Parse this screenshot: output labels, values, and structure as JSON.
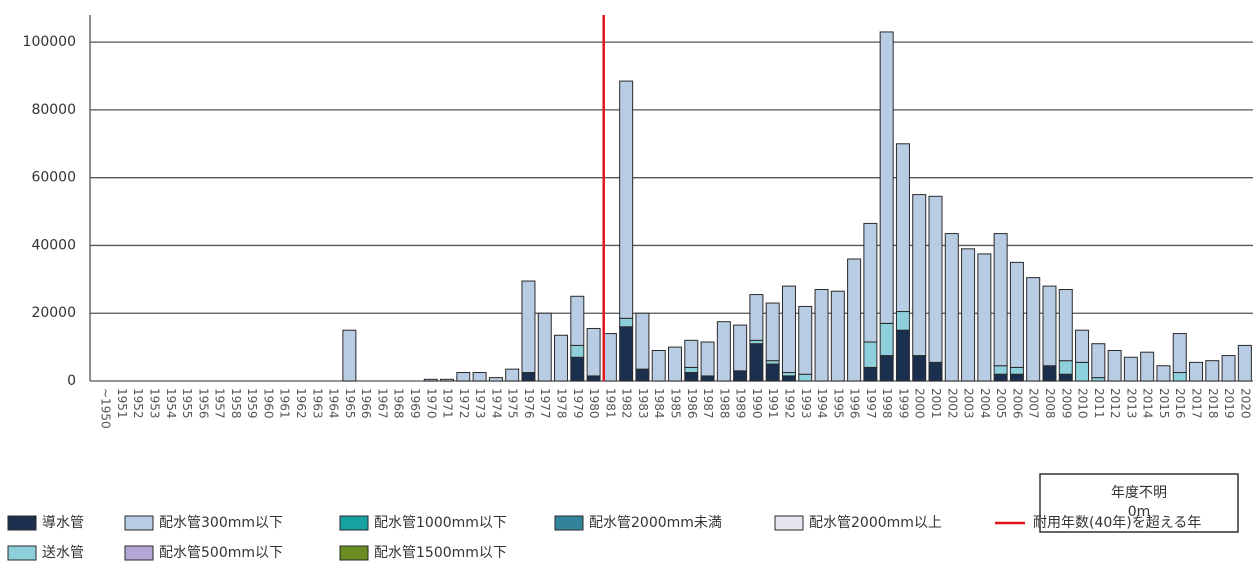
{
  "chart_data": {
    "type": "stacked_bar",
    "categories": [
      "~1950",
      "1951",
      "1952",
      "1953",
      "1954",
      "1955",
      "1956",
      "1957",
      "1958",
      "1959",
      "1960",
      "1961",
      "1962",
      "1963",
      "1964",
      "1965",
      "1966",
      "1967",
      "1968",
      "1969",
      "1970",
      "1971",
      "1972",
      "1973",
      "1974",
      "1975",
      "1976",
      "1977",
      "1978",
      "1979",
      "1980",
      "1981",
      "1982",
      "1983",
      "1984",
      "1985",
      "1986",
      "1987",
      "1988",
      "1989",
      "1990",
      "1991",
      "1992",
      "1993",
      "1994",
      "1995",
      "1996",
      "1997",
      "1998",
      "1999",
      "2000",
      "2001",
      "2002",
      "2003",
      "2004",
      "2005",
      "2006",
      "2007",
      "2008",
      "2009",
      "2010",
      "2011",
      "2012",
      "2013",
      "2014",
      "2015",
      "2016",
      "2017",
      "2018",
      "2019",
      "2020"
    ],
    "series": [
      {
        "name": "導水管",
        "color": "#1b2f4e",
        "values": [
          0,
          0,
          0,
          0,
          0,
          0,
          0,
          0,
          0,
          0,
          0,
          0,
          0,
          0,
          0,
          0,
          0,
          0,
          0,
          0,
          0,
          0,
          0,
          0,
          0,
          0,
          2500,
          0,
          0,
          7000,
          1500,
          0,
          16000,
          3500,
          0,
          0,
          2500,
          1500,
          0,
          3000,
          11000,
          5000,
          1500,
          0,
          0,
          0,
          0,
          4000,
          7500,
          15000,
          7500,
          5500,
          0,
          0,
          0,
          2000,
          2000,
          0,
          4500,
          2000,
          0,
          0,
          0,
          0,
          0,
          0,
          0,
          0,
          0,
          0,
          0
        ]
      },
      {
        "name": "送水管",
        "color": "#8ecfdc",
        "values": [
          0,
          0,
          0,
          0,
          0,
          0,
          0,
          0,
          0,
          0,
          0,
          0,
          0,
          0,
          0,
          0,
          0,
          0,
          0,
          0,
          0,
          0,
          0,
          0,
          0,
          0,
          0,
          0,
          0,
          3500,
          0,
          0,
          2500,
          0,
          0,
          0,
          1500,
          0,
          0,
          0,
          1000,
          1000,
          1000,
          2000,
          0,
          0,
          0,
          7500,
          9500,
          5500,
          0,
          0,
          0,
          0,
          0,
          2500,
          2000,
          0,
          0,
          4000,
          5500,
          1000,
          0,
          0,
          0,
          0,
          2500,
          0,
          0,
          0,
          0
        ]
      },
      {
        "name": "配水管300mm以下",
        "color": "#b8cce4",
        "values": [
          0,
          0,
          0,
          0,
          0,
          0,
          0,
          0,
          0,
          0,
          0,
          0,
          0,
          0,
          0,
          15000,
          0,
          0,
          0,
          0,
          500,
          500,
          2500,
          2500,
          1000,
          3500,
          27000,
          20000,
          13500,
          14500,
          14000,
          14000,
          70000,
          16500,
          9000,
          10000,
          8000,
          10000,
          17500,
          13500,
          13500,
          17000,
          25500,
          20000,
          27000,
          26500,
          36000,
          35000,
          86000,
          49500,
          47500,
          49000,
          43500,
          39000,
          37500,
          39000,
          31000,
          30500,
          23500,
          21000,
          9500,
          10000,
          9000,
          7000,
          8500,
          4500,
          11500,
          5500,
          6000,
          7500,
          10500
        ]
      },
      {
        "name": "配水管500mm以下",
        "color": "#b4a7d6",
        "values": [
          0,
          0,
          0,
          0,
          0,
          0,
          0,
          0,
          0,
          0,
          0,
          0,
          0,
          0,
          0,
          0,
          0,
          0,
          0,
          0,
          0,
          0,
          0,
          0,
          0,
          0,
          0,
          0,
          0,
          0,
          0,
          0,
          0,
          0,
          0,
          0,
          0,
          0,
          0,
          0,
          0,
          0,
          0,
          0,
          0,
          0,
          0,
          0,
          0,
          0,
          0,
          0,
          0,
          0,
          0,
          0,
          0,
          0,
          0,
          0,
          0,
          0,
          0,
          0,
          0,
          0,
          0,
          0,
          0,
          0,
          0
        ]
      },
      {
        "name": "配水管1000mm以下",
        "color": "#17a2a2",
        "values": [
          0,
          0,
          0,
          0,
          0,
          0,
          0,
          0,
          0,
          0,
          0,
          0,
          0,
          0,
          0,
          0,
          0,
          0,
          0,
          0,
          0,
          0,
          0,
          0,
          0,
          0,
          0,
          0,
          0,
          0,
          0,
          0,
          0,
          0,
          0,
          0,
          0,
          0,
          0,
          0,
          0,
          0,
          0,
          0,
          0,
          0,
          0,
          0,
          0,
          0,
          0,
          0,
          0,
          0,
          0,
          0,
          0,
          0,
          0,
          0,
          0,
          0,
          0,
          0,
          0,
          0,
          0,
          0,
          0,
          0,
          0
        ]
      },
      {
        "name": "配水管1500mm以下",
        "color": "#6b8e23",
        "values": [
          0,
          0,
          0,
          0,
          0,
          0,
          0,
          0,
          0,
          0,
          0,
          0,
          0,
          0,
          0,
          0,
          0,
          0,
          0,
          0,
          0,
          0,
          0,
          0,
          0,
          0,
          0,
          0,
          0,
          0,
          0,
          0,
          0,
          0,
          0,
          0,
          0,
          0,
          0,
          0,
          0,
          0,
          0,
          0,
          0,
          0,
          0,
          0,
          0,
          0,
          0,
          0,
          0,
          0,
          0,
          0,
          0,
          0,
          0,
          0,
          0,
          0,
          0,
          0,
          0,
          0,
          0,
          0,
          0,
          0,
          0
        ]
      },
      {
        "name": "配水管2000mm未満",
        "color": "#31849b",
        "values": [
          0,
          0,
          0,
          0,
          0,
          0,
          0,
          0,
          0,
          0,
          0,
          0,
          0,
          0,
          0,
          0,
          0,
          0,
          0,
          0,
          0,
          0,
          0,
          0,
          0,
          0,
          0,
          0,
          0,
          0,
          0,
          0,
          0,
          0,
          0,
          0,
          0,
          0,
          0,
          0,
          0,
          0,
          0,
          0,
          0,
          0,
          0,
          0,
          0,
          0,
          0,
          0,
          0,
          0,
          0,
          0,
          0,
          0,
          0,
          0,
          0,
          0,
          0,
          0,
          0,
          0,
          0,
          0,
          0,
          0,
          0
        ]
      },
      {
        "name": "配水管2000mm以上",
        "color": "#e6e6ee",
        "values": [
          0,
          0,
          0,
          0,
          0,
          0,
          0,
          0,
          0,
          0,
          0,
          0,
          0,
          0,
          0,
          0,
          0,
          0,
          0,
          0,
          0,
          0,
          0,
          0,
          0,
          0,
          0,
          0,
          0,
          0,
          0,
          0,
          0,
          0,
          0,
          0,
          0,
          0,
          0,
          0,
          0,
          0,
          0,
          0,
          0,
          0,
          0,
          0,
          0,
          0,
          0,
          0,
          0,
          0,
          0,
          0,
          0,
          0,
          0,
          0,
          0,
          0,
          0,
          0,
          0,
          0,
          0,
          0,
          0,
          0,
          0
        ]
      }
    ],
    "threshold_line": {
      "name": "耐用年数(40年)を超える年",
      "color": "#e8141c",
      "between": [
        "1980",
        "1981"
      ]
    },
    "annotation": {
      "title": "年度不明",
      "text": "0m"
    },
    "ylim": [
      0,
      108000
    ],
    "yticks": [
      0,
      20000,
      40000,
      60000,
      80000,
      100000
    ],
    "grid": true
  }
}
